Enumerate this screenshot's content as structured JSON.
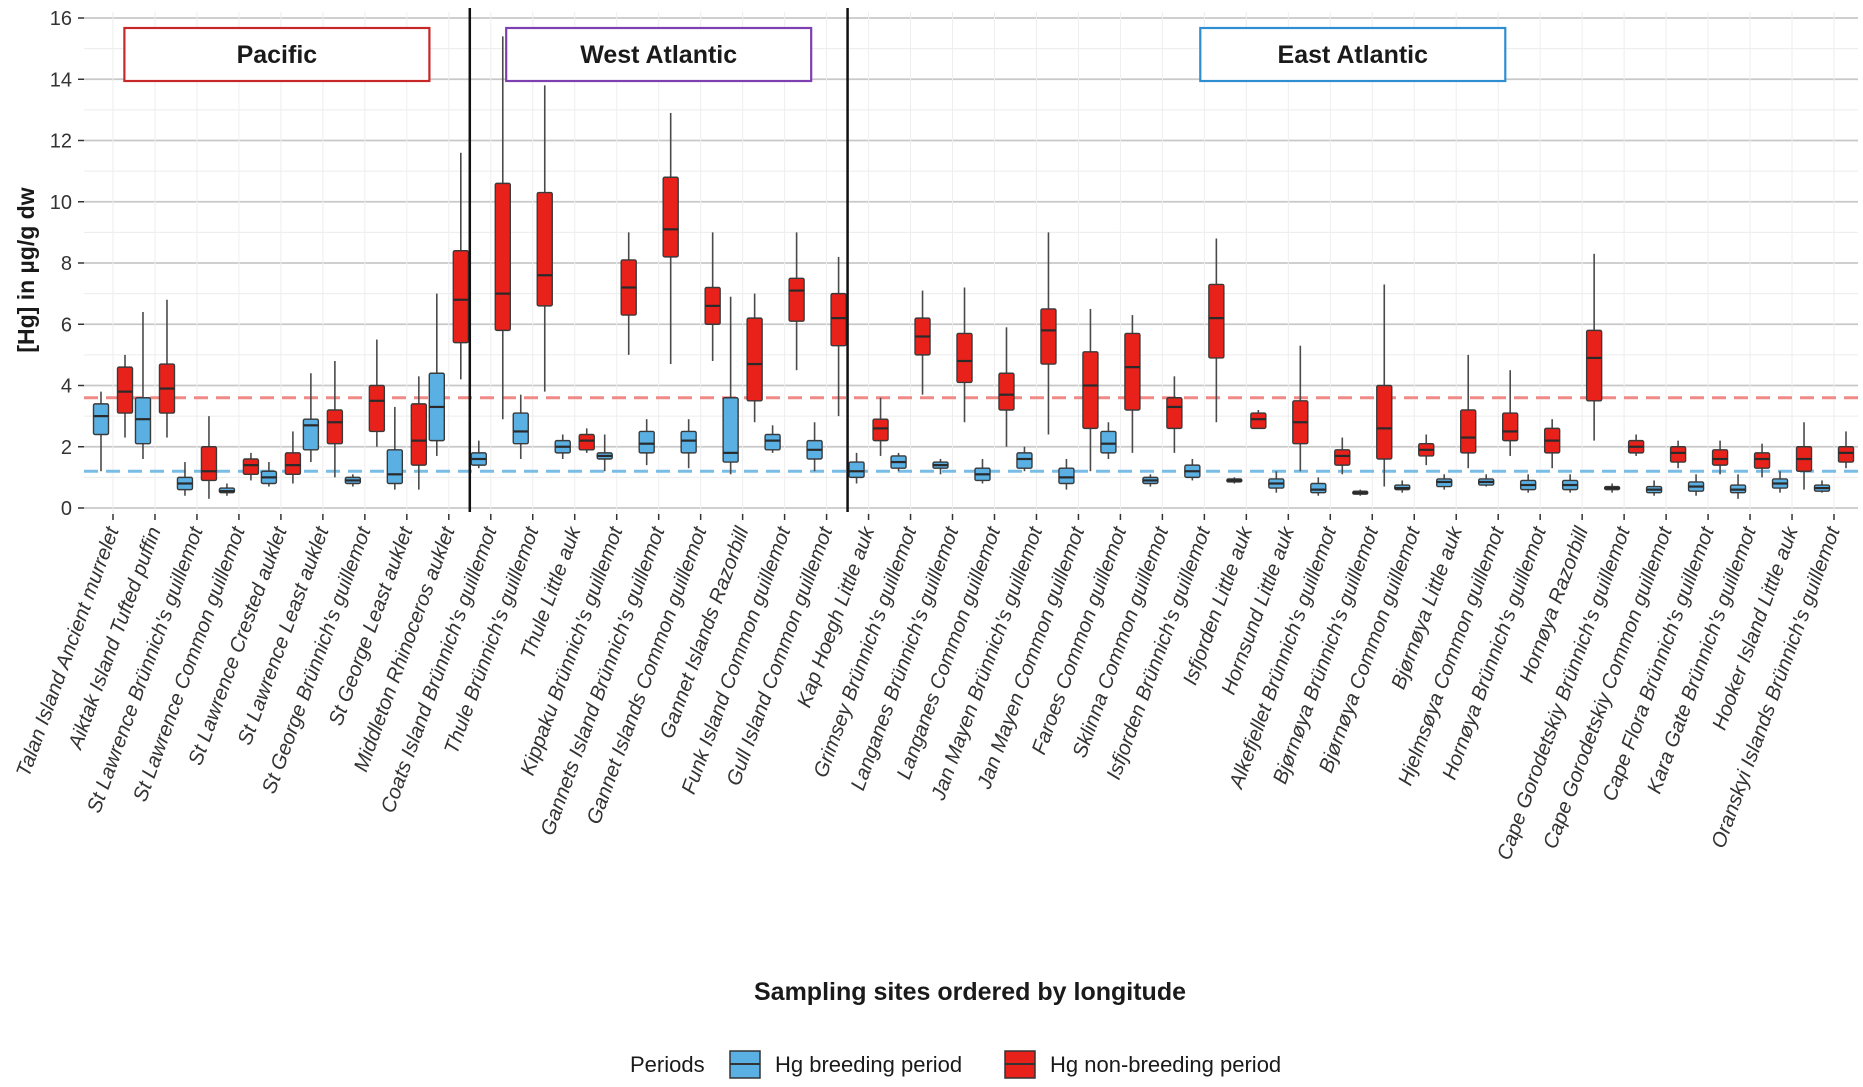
{
  "chart_data": {
    "type": "boxplot",
    "xlabel": "Sampling sites ordered by longitude",
    "ylabel": "[Hg] in µg/g dw",
    "ylim": [
      0,
      16
    ],
    "yticks": [
      "0",
      "2",
      "4",
      "6",
      "8",
      "10",
      "12",
      "14",
      "16"
    ],
    "grid": "horizontal",
    "legend": {
      "position": "bottom",
      "title": "Periods",
      "items": [
        {
          "label": "Hg breeding period",
          "color": "#5aafe3"
        },
        {
          "label": "Hg non-breeding period",
          "color": "#e8221b"
        }
      ]
    },
    "reference_lines": [
      {
        "y": 3.6,
        "color": "#f08a86"
      },
      {
        "y": 1.2,
        "color": "#79bde6"
      }
    ],
    "regions": [
      {
        "label": "Pacific",
        "color": "#c62828",
        "from": 0,
        "to": 9
      },
      {
        "label": "West Atlantic",
        "color": "#7e40b0",
        "from": 9,
        "to": 18
      },
      {
        "label": "East Atlantic",
        "color": "#2f8ed0",
        "from": 18,
        "to": 43
      }
    ],
    "categories": [
      "Talan Island Ancient murrelet",
      "Aiktak Island Tufted puffin",
      "St Lawrence Brünnich's guillemot",
      "St Lawrence Common guillemot",
      "St Lawrence Crested auklet",
      "St Lawrence Least auklet",
      "St George Brünnich's guillemot",
      "St George Least auklet",
      "Middleton Rhinoceros auklet",
      "Coats Island Brünnich's guillemot",
      "Thule Brünnich's guillemot",
      "Thule Little auk",
      "Kippaku Brünnich's guillemot",
      "Gannets Island Brünnich's guillemot",
      "Gannet Islands Common guillemot",
      "Gannet Islands Razorbill",
      "Funk Island Common guillemot",
      "Gull Island Common guillemot",
      "Kap Hoegh Little auk",
      "Grimsey Brünnich's guillemot",
      "Langanes Brünnich's guillemot",
      "Langanes Common guillemot",
      "Jan Mayen Brünnich's guillemot",
      "Jan Mayen Common guillemot",
      "Faroes Common guillemot",
      "Sklinna Common guillemot",
      "Isfjorden Brünnich's guillemot",
      "Isfjorden Little auk",
      "Hornsund Little auk",
      "Alkefjellet Brünnich's guillemot",
      "Bjørnøya Brünnich's guillemot",
      "Bjørnøya Common guillemot",
      "Bjørnøya Little auk",
      "Hjelmsøya Common guillemot",
      "Hornøya Brünnich's guillemot",
      "Hornøya Razorbill",
      "Cape Gorodetskiy Brünnich's guillemot",
      "Cape Gorodetskiy Common guillemot",
      "Cape Flora Brünnich's guillemot",
      "Kara Gate Brünnich's guillemot",
      "Hooker Island Little auk",
      "Oranskyi Islands Brünnich's guillemot"
    ],
    "series": [
      {
        "name": "Hg breeding period",
        "boxes": [
          [
            1.2,
            2.4,
            3.0,
            3.4,
            3.8
          ],
          [
            1.6,
            2.1,
            2.9,
            3.6,
            6.4
          ],
          [
            0.4,
            0.6,
            0.8,
            1.0,
            1.5
          ],
          [
            0.4,
            0.5,
            0.55,
            0.65,
            0.8
          ],
          [
            0.7,
            0.8,
            1.0,
            1.2,
            1.5
          ],
          [
            1.5,
            1.9,
            2.7,
            2.9,
            4.4
          ],
          [
            0.7,
            0.8,
            0.9,
            1.0,
            1.1
          ],
          [
            0.6,
            0.8,
            1.1,
            1.9,
            3.3
          ],
          [
            1.7,
            2.2,
            3.3,
            4.4,
            7.0
          ],
          [
            1.3,
            1.4,
            1.6,
            1.8,
            2.2
          ],
          [
            1.6,
            2.1,
            2.5,
            3.1,
            3.7
          ],
          [
            1.6,
            1.8,
            2.0,
            2.2,
            2.4
          ],
          [
            1.2,
            1.6,
            1.7,
            1.8,
            2.4
          ],
          [
            1.4,
            1.8,
            2.1,
            2.5,
            2.9
          ],
          [
            1.3,
            1.8,
            2.2,
            2.5,
            2.9
          ],
          [
            1.1,
            1.5,
            1.8,
            3.6,
            6.9
          ],
          [
            1.8,
            1.9,
            2.2,
            2.4,
            2.7
          ],
          [
            1.2,
            1.6,
            1.9,
            2.2,
            2.8
          ],
          [
            0.8,
            1.0,
            1.2,
            1.5,
            1.8
          ],
          [
            1.2,
            1.3,
            1.5,
            1.7,
            1.8
          ],
          [
            1.1,
            1.3,
            1.4,
            1.5,
            1.6
          ],
          [
            0.8,
            0.9,
            1.1,
            1.3,
            1.6
          ],
          [
            1.2,
            1.3,
            1.6,
            1.8,
            2.0
          ],
          [
            0.6,
            0.8,
            1.0,
            1.3,
            1.6
          ],
          [
            1.6,
            1.8,
            2.1,
            2.5,
            2.8
          ],
          [
            0.7,
            0.8,
            0.9,
            1.0,
            1.1
          ],
          [
            0.9,
            1.0,
            1.2,
            1.4,
            1.6
          ],
          [
            0.8,
            0.85,
            0.9,
            0.95,
            1.0
          ],
          [
            0.5,
            0.65,
            0.8,
            0.95,
            1.2
          ],
          [
            0.4,
            0.5,
            0.6,
            0.8,
            1.0
          ],
          [
            0.4,
            0.45,
            0.5,
            0.55,
            0.6
          ],
          [
            0.5,
            0.6,
            0.65,
            0.75,
            0.9
          ],
          [
            0.6,
            0.7,
            0.85,
            0.95,
            1.1
          ],
          [
            0.7,
            0.75,
            0.85,
            0.95,
            1.1
          ],
          [
            0.5,
            0.6,
            0.75,
            0.9,
            1.1
          ],
          [
            0.5,
            0.6,
            0.75,
            0.9,
            1.1
          ],
          [
            0.5,
            0.6,
            0.65,
            0.7,
            0.8
          ],
          [
            0.4,
            0.5,
            0.6,
            0.7,
            0.9
          ],
          [
            0.4,
            0.55,
            0.7,
            0.85,
            1.1
          ],
          [
            0.3,
            0.5,
            0.6,
            0.75,
            1.1
          ],
          [
            0.5,
            0.65,
            0.8,
            0.95,
            1.2
          ],
          [
            0.5,
            0.55,
            0.65,
            0.75,
            0.9
          ]
        ]
      },
      {
        "name": "Hg non-breeding period",
        "boxes": [
          [
            2.3,
            3.1,
            3.8,
            4.6,
            5.0
          ],
          [
            2.3,
            3.1,
            3.9,
            4.7,
            6.8
          ],
          [
            0.3,
            0.9,
            1.2,
            2.0,
            3.0
          ],
          [
            0.9,
            1.1,
            1.4,
            1.6,
            1.8
          ],
          [
            0.8,
            1.1,
            1.4,
            1.8,
            2.5
          ],
          [
            1.0,
            2.1,
            2.8,
            3.2,
            4.8
          ],
          [
            2.0,
            2.5,
            3.5,
            4.0,
            5.5
          ],
          [
            0.6,
            1.4,
            2.2,
            3.4,
            4.3
          ],
          [
            4.2,
            5.4,
            6.8,
            8.4,
            11.6
          ],
          [
            2.9,
            5.8,
            7.0,
            10.6,
            15.4
          ],
          [
            3.8,
            6.6,
            7.6,
            10.3,
            13.8
          ],
          [
            1.8,
            1.9,
            2.2,
            2.4,
            2.6
          ],
          [
            5.0,
            6.3,
            7.2,
            8.1,
            9.0
          ],
          [
            4.7,
            8.2,
            9.1,
            10.8,
            12.9
          ],
          [
            4.8,
            6.0,
            6.6,
            7.2,
            9.0
          ],
          [
            2.8,
            3.5,
            4.7,
            6.2,
            7.0
          ],
          [
            4.5,
            6.1,
            7.1,
            7.5,
            9.0
          ],
          [
            3.0,
            5.3,
            6.2,
            7.0,
            8.2
          ],
          [
            1.7,
            2.2,
            2.6,
            2.9,
            3.6
          ],
          [
            3.7,
            5.0,
            5.6,
            6.2,
            7.1
          ],
          [
            2.8,
            4.1,
            4.8,
            5.7,
            7.2
          ],
          [
            2.0,
            3.2,
            3.7,
            4.4,
            5.9
          ],
          [
            2.4,
            4.7,
            5.8,
            6.5,
            9.0
          ],
          [
            1.2,
            2.6,
            4.0,
            5.1,
            6.5
          ],
          [
            1.8,
            3.2,
            4.6,
            5.7,
            6.3
          ],
          [
            1.8,
            2.6,
            3.3,
            3.6,
            4.3
          ],
          [
            2.8,
            4.9,
            6.2,
            7.3,
            8.8
          ],
          [
            2.6,
            2.6,
            2.9,
            3.1,
            3.2
          ],
          [
            1.2,
            2.1,
            2.8,
            3.5,
            5.3
          ],
          [
            1.1,
            1.4,
            1.7,
            1.9,
            2.3
          ],
          [
            0.7,
            1.6,
            2.6,
            4.0,
            7.3
          ],
          [
            1.4,
            1.7,
            1.9,
            2.1,
            2.4
          ],
          [
            1.3,
            1.8,
            2.3,
            3.2,
            5.0
          ],
          [
            1.7,
            2.2,
            2.5,
            3.1,
            4.5
          ],
          [
            1.3,
            1.8,
            2.2,
            2.6,
            2.9
          ],
          [
            2.2,
            3.5,
            4.9,
            5.8,
            8.3
          ],
          [
            1.7,
            1.8,
            2.0,
            2.2,
            2.4
          ],
          [
            1.3,
            1.5,
            1.8,
            2.0,
            2.2
          ],
          [
            1.1,
            1.4,
            1.6,
            1.9,
            2.2
          ],
          [
            1.0,
            1.3,
            1.6,
            1.8,
            2.1
          ],
          [
            0.6,
            1.2,
            1.6,
            2.0,
            2.8
          ],
          [
            1.3,
            1.5,
            1.8,
            2.0,
            2.5
          ]
        ]
      }
    ]
  }
}
